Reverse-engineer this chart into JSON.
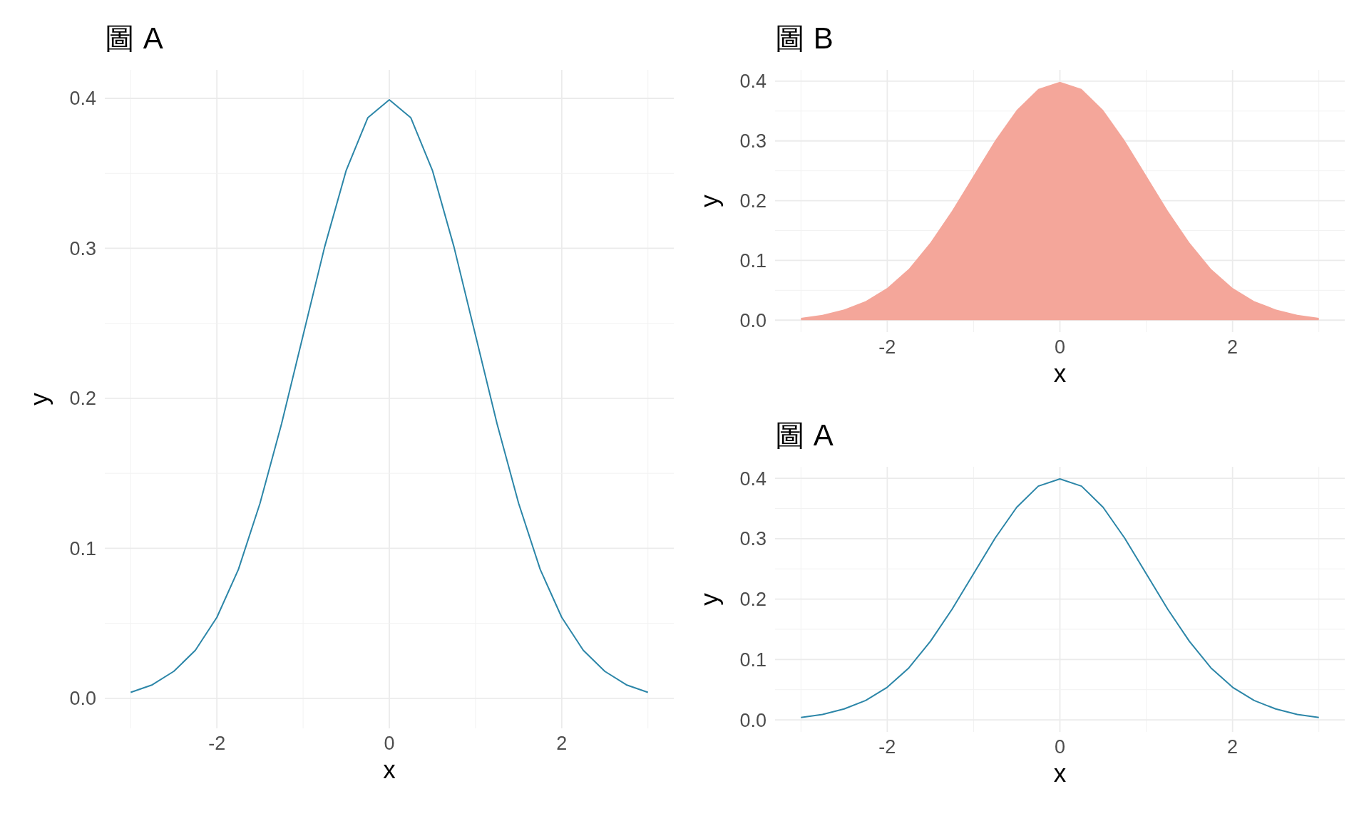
{
  "chart_data": [
    {
      "type": "line",
      "title": "圖 A",
      "xlabel": "x",
      "ylabel": "y",
      "xlim": [
        -3.3,
        3.3
      ],
      "ylim": [
        -0.02,
        0.419
      ],
      "xticks": [
        {
          "value": -3,
          "label": null
        },
        -2,
        {
          "value": -1,
          "label": null
        },
        0,
        {
          "value": 1,
          "label": null
        },
        2,
        {
          "value": 3,
          "label": null
        }
      ],
      "yticks": [
        {
          "value": 0,
          "label": "0.0"
        },
        {
          "value": 0.05,
          "label": null
        },
        {
          "value": 0.1,
          "label": "0.1"
        },
        {
          "value": 0.15,
          "label": null
        },
        {
          "value": 0.2,
          "label": "0.2"
        },
        {
          "value": 0.25,
          "label": null
        },
        {
          "value": 0.3,
          "label": "0.3"
        },
        {
          "value": 0.35,
          "label": null
        },
        {
          "value": 0.4,
          "label": "0.4"
        }
      ],
      "grid": true,
      "x": [
        -3,
        -2.75,
        -2.5,
        -2.25,
        -2,
        -1.75,
        -1.5,
        -1.25,
        -1,
        -0.75,
        -0.5,
        -0.25,
        0,
        0.25,
        0.5,
        0.75,
        1,
        1.25,
        1.5,
        1.75,
        2,
        2.25,
        2.5,
        2.75,
        3
      ],
      "series": [
        {
          "color": "#2c86a8",
          "values": [
            0.004,
            0.009,
            0.018,
            0.032,
            0.054,
            0.086,
            0.13,
            0.183,
            0.242,
            0.301,
            0.352,
            0.387,
            0.399,
            0.387,
            0.352,
            0.301,
            0.242,
            0.183,
            0.13,
            0.086,
            0.054,
            0.032,
            0.018,
            0.009,
            0.004
          ]
        }
      ]
    },
    {
      "type": "area",
      "title": "圖 B",
      "xlabel": "x",
      "ylabel": "y",
      "xlim": [
        -3.3,
        3.3
      ],
      "ylim": [
        -0.02,
        0.419
      ],
      "xticks": [
        {
          "value": -3,
          "label": null
        },
        -2,
        {
          "value": -1,
          "label": null
        },
        0,
        {
          "value": 1,
          "label": null
        },
        2,
        {
          "value": 3,
          "label": null
        }
      ],
      "yticks": [
        {
          "value": 0,
          "label": "0.0"
        },
        {
          "value": 0.05,
          "label": null
        },
        {
          "value": 0.1,
          "label": "0.1"
        },
        {
          "value": 0.15,
          "label": null
        },
        {
          "value": 0.2,
          "label": "0.2"
        },
        {
          "value": 0.25,
          "label": null
        },
        {
          "value": 0.3,
          "label": "0.3"
        },
        {
          "value": 0.35,
          "label": null
        },
        {
          "value": 0.4,
          "label": "0.4"
        }
      ],
      "grid": true,
      "x": [
        -3,
        -2.75,
        -2.5,
        -2.25,
        -2,
        -1.75,
        -1.5,
        -1.25,
        -1,
        -0.75,
        -0.5,
        -0.25,
        0,
        0.25,
        0.5,
        0.75,
        1,
        1.25,
        1.5,
        1.75,
        2,
        2.25,
        2.5,
        2.75,
        3
      ],
      "series": [
        {
          "color": "#f4a69a",
          "values": [
            0.004,
            0.009,
            0.018,
            0.032,
            0.054,
            0.086,
            0.13,
            0.183,
            0.242,
            0.301,
            0.352,
            0.387,
            0.399,
            0.387,
            0.352,
            0.301,
            0.242,
            0.183,
            0.13,
            0.086,
            0.054,
            0.032,
            0.018,
            0.009,
            0.004
          ]
        }
      ]
    },
    {
      "type": "line",
      "title": "圖 A",
      "xlabel": "x",
      "ylabel": "y",
      "xlim": [
        -3.3,
        3.3
      ],
      "ylim": [
        -0.02,
        0.419
      ],
      "xticks": [
        {
          "value": -3,
          "label": null
        },
        -2,
        {
          "value": -1,
          "label": null
        },
        0,
        {
          "value": 1,
          "label": null
        },
        2,
        {
          "value": 3,
          "label": null
        }
      ],
      "yticks": [
        {
          "value": 0,
          "label": "0.0"
        },
        {
          "value": 0.05,
          "label": null
        },
        {
          "value": 0.1,
          "label": "0.1"
        },
        {
          "value": 0.15,
          "label": null
        },
        {
          "value": 0.2,
          "label": "0.2"
        },
        {
          "value": 0.25,
          "label": null
        },
        {
          "value": 0.3,
          "label": "0.3"
        },
        {
          "value": 0.35,
          "label": null
        },
        {
          "value": 0.4,
          "label": "0.4"
        }
      ],
      "grid": true,
      "x": [
        -3,
        -2.75,
        -2.5,
        -2.25,
        -2,
        -1.75,
        -1.5,
        -1.25,
        -1,
        -0.75,
        -0.5,
        -0.25,
        0,
        0.25,
        0.5,
        0.75,
        1,
        1.25,
        1.5,
        1.75,
        2,
        2.25,
        2.5,
        2.75,
        3
      ],
      "series": [
        {
          "color": "#2c86a8",
          "values": [
            0.004,
            0.009,
            0.018,
            0.032,
            0.054,
            0.086,
            0.13,
            0.183,
            0.242,
            0.301,
            0.352,
            0.387,
            0.399,
            0.387,
            0.352,
            0.301,
            0.242,
            0.183,
            0.13,
            0.086,
            0.054,
            0.032,
            0.018,
            0.009,
            0.004
          ]
        }
      ]
    }
  ]
}
